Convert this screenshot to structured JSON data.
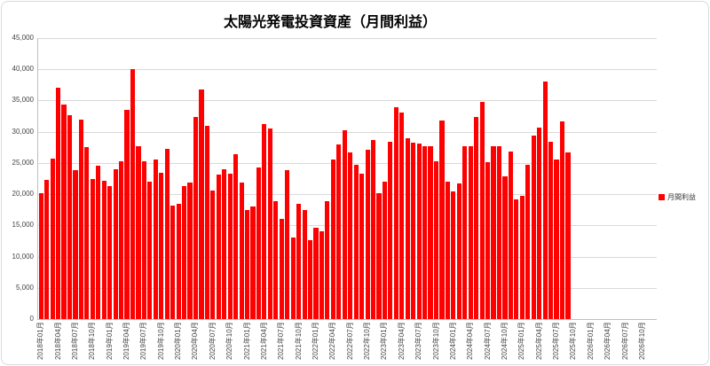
{
  "title": "太陽光発電投資資産（月間利益）",
  "legend": {
    "label": "月間利益",
    "color": "#FF0000",
    "position": "right"
  },
  "chart_data": {
    "type": "bar",
    "title": "太陽光発電投資資産（月間利益）",
    "grid": true,
    "legend_position": "right",
    "series": [
      {
        "name": "月間利益",
        "color": "#FF0000",
        "start_month": "2018年01月",
        "values": [
          20200,
          22300,
          25700,
          37100,
          34400,
          32700,
          23900,
          32000,
          27500,
          22400,
          24600,
          22200,
          21300,
          24000,
          25200,
          33500,
          40100,
          27700,
          25200,
          22000,
          25600,
          23400,
          27300,
          18200,
          18500,
          21300,
          21800,
          32300,
          36700,
          31000,
          20600,
          23200,
          24000,
          23300,
          26400,
          21800,
          17500,
          18100,
          24300,
          31200,
          30500,
          18900,
          16100,
          23900,
          13000,
          18500,
          17500,
          12700,
          14600,
          14000,
          18900,
          25500,
          27900,
          30200,
          26700,
          24700,
          23300,
          27100,
          28700,
          20100,
          22000,
          28400,
          33900,
          33100,
          29000,
          28300,
          28100,
          27700,
          27700,
          25200,
          31800,
          22000,
          20400,
          21700,
          27700,
          27700,
          32400,
          34800,
          25100,
          27700,
          27700,
          22800,
          26900,
          19200,
          19700,
          24700,
          29400,
          30700,
          38000,
          28400,
          25500,
          31700,
          26700
        ]
      }
    ],
    "x_axis": {
      "months_per_tick": 3,
      "total_slots": 108,
      "tick_labels": [
        "2018年01月",
        "2018年04月",
        "2018年07月",
        "2018年10月",
        "2019年01月",
        "2019年04月",
        "2019年07月",
        "2019年10月",
        "2020年01月",
        "2020年04月",
        "2020年07月",
        "2020年10月",
        "2021年01月",
        "2021年04月",
        "2021年07月",
        "2021年10月",
        "2022年01月",
        "2022年04月",
        "2022年07月",
        "2022年10月",
        "2023年01月",
        "2023年04月",
        "2023年07月",
        "2023年10月",
        "2024年01月",
        "2024年04月",
        "2024年07月",
        "2024年10月",
        "2025年01月",
        "2025年04月",
        "2025年07月",
        "2025年10月",
        "2026年01月",
        "2026年04月",
        "2026年07月",
        "2026年10月"
      ]
    },
    "y_axis": {
      "min": 0,
      "max": 45000,
      "step": 5000,
      "tick_labels": [
        "0",
        "5,000",
        "10,000",
        "15,000",
        "20,000",
        "25,000",
        "30,000",
        "35,000",
        "40,000",
        "45,000"
      ]
    }
  }
}
